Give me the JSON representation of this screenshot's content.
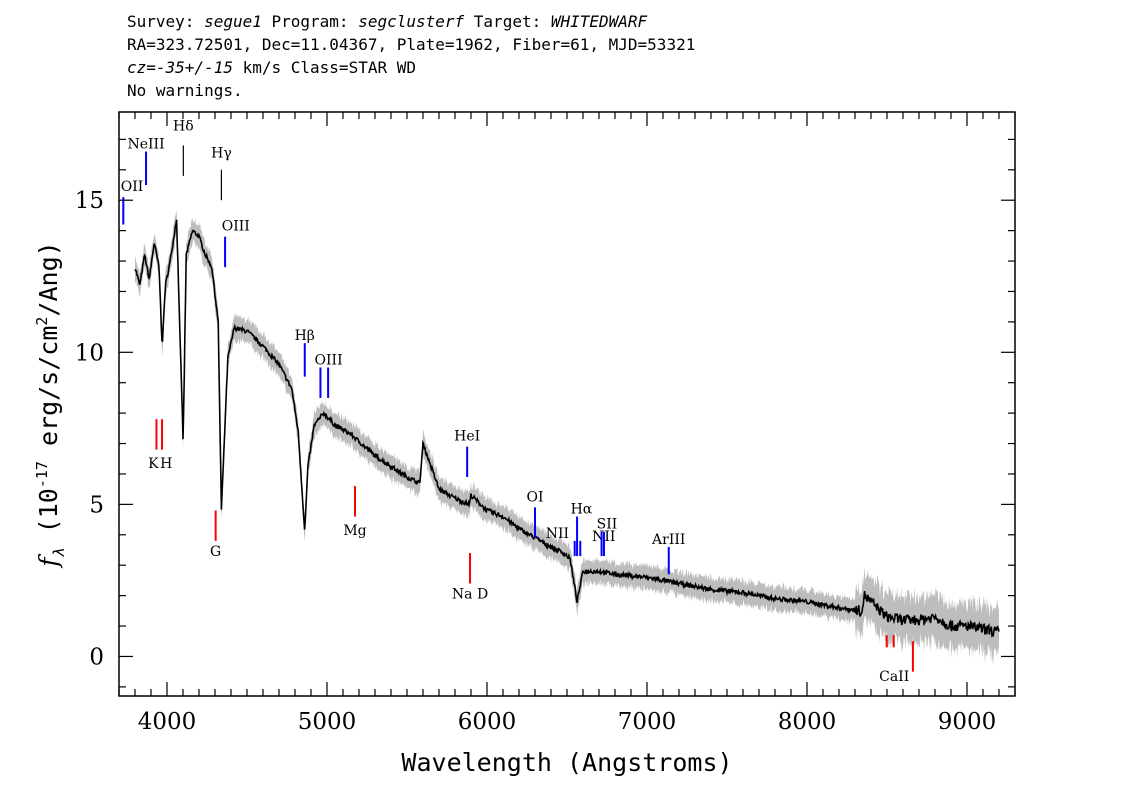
{
  "header": {
    "line1": {
      "survey_label": "Survey: ",
      "survey": "segue1",
      "program_label": " Program: ",
      "program": "segclusterf",
      "target_label": " Target: ",
      "target": "WHITEDWARF"
    },
    "line2": "RA=323.72501, Dec=11.04367, Plate=1962, Fiber=61, MJD=53321",
    "line3": {
      "cz": "cz=-35+/-15",
      "rest": " km/s Class=STAR WD"
    },
    "line4": "No warnings."
  },
  "chart_data": {
    "type": "line",
    "xlabel": "Wavelength (Angstroms)",
    "ylabel_parts": {
      "f": "f",
      "sub": "λ",
      "open": " (10",
      "exp": "-17",
      "mid": " erg/s/cm",
      "exp2": "2",
      "close": "/Ang)"
    },
    "xlim": [
      3700,
      9300
    ],
    "ylim": [
      -1.3,
      17.9
    ],
    "x_ticks": [
      4000,
      5000,
      6000,
      7000,
      8000,
      9000
    ],
    "y_ticks": [
      0,
      5,
      10,
      15
    ],
    "grid": false,
    "colors": {
      "flux": "#000000",
      "error_band": "#bdbdbd",
      "emission": "#0000ff",
      "absorption": "#ff0000",
      "marker": "#000000"
    },
    "series": [
      {
        "x": [
          3800,
          3830,
          3860,
          3889,
          3920,
          3950,
          3970,
          3990,
          4020,
          4060,
          4101,
          4120,
          4160,
          4200,
          4240,
          4280,
          4320,
          4340,
          4380,
          4420,
          4500,
          4600,
          4700,
          4780,
          4820,
          4861,
          4880,
          4920,
          4980,
          5050,
          5150,
          5300,
          5500,
          5580,
          5600,
          5700,
          5800,
          5890,
          5900,
          6000,
          6100,
          6200,
          6300,
          6400,
          6480,
          6520,
          6563,
          6600,
          6700,
          6800,
          7000,
          7200,
          7400,
          7600,
          7800,
          8000,
          8200,
          8340,
          8360,
          8500,
          8600,
          8700,
          8800,
          8900,
          9000,
          9100,
          9200
        ],
        "y": [
          12.8,
          12.2,
          13.2,
          12.4,
          13.6,
          12.8,
          10.2,
          12.2,
          13.0,
          14.4,
          7.0,
          13.2,
          14.0,
          13.8,
          13.2,
          12.8,
          11.0,
          4.8,
          9.8,
          10.8,
          10.7,
          10.2,
          9.6,
          8.8,
          7.4,
          4.1,
          6.2,
          7.6,
          8.0,
          7.6,
          7.3,
          6.6,
          5.9,
          5.7,
          7.0,
          5.5,
          5.2,
          5.0,
          5.3,
          4.8,
          4.6,
          4.2,
          3.9,
          3.6,
          3.4,
          3.2,
          1.8,
          2.8,
          2.8,
          2.7,
          2.6,
          2.4,
          2.2,
          2.1,
          1.9,
          1.8,
          1.6,
          1.5,
          2.0,
          1.3,
          1.2,
          1.2,
          1.3,
          1.0,
          1.0,
          0.9,
          0.8
        ]
      }
    ],
    "emission_lines": [
      {
        "label": "OII",
        "x": 3727,
        "y1": 14.2,
        "y2": 15.1,
        "label_y": 15.3,
        "label_x": 3730
      },
      {
        "label": "NeIII",
        "x": 3869,
        "y1": 15.5,
        "y2": 16.6,
        "label_y": 16.7,
        "label_x": 3869
      },
      {
        "label": "Hδ",
        "x": 4102,
        "y1": 15.8,
        "y2": 16.8,
        "label_y": 17.3,
        "label_x": 4102,
        "marker": true
      },
      {
        "label": "Hγ",
        "x": 4340,
        "y1": 15.0,
        "y2": 16.0,
        "label_y": 16.4,
        "label_x": 4340,
        "marker": true
      },
      {
        "label": "OIII",
        "x": 4363,
        "y1": 12.8,
        "y2": 13.8,
        "label_y": 14.0,
        "label_x": 4430
      },
      {
        "label": "Hβ",
        "x": 4861,
        "y1": 9.2,
        "y2": 10.3,
        "label_y": 10.4,
        "label_x": 4861
      },
      {
        "label": "OIII",
        "x": 4959,
        "y1": 8.5,
        "y2": 9.5,
        "label_y": 9.6,
        "label_x": 5010
      },
      {
        "label": "OIII",
        "x": 5007,
        "y1": 8.5,
        "y2": 9.5,
        "label_y": null,
        "label_x": 5007
      },
      {
        "label": "HeI",
        "x": 5876,
        "y1": 5.9,
        "y2": 6.9,
        "label_y": 7.1,
        "label_x": 5876
      },
      {
        "label": "OI",
        "x": 6300,
        "y1": 3.9,
        "y2": 4.9,
        "label_y": 5.1,
        "label_x": 6300
      },
      {
        "label": "NII",
        "x": 6548,
        "y1": 3.3,
        "y2": 3.8,
        "label_y": 3.9,
        "label_x": 6440
      },
      {
        "label": "Hα",
        "x": 6563,
        "y1": 3.3,
        "y2": 4.6,
        "label_y": 4.7,
        "label_x": 6590
      },
      {
        "label": "NII",
        "x": 6583,
        "y1": 3.3,
        "y2": 3.8,
        "label_y": 3.8,
        "label_x": 6730
      },
      {
        "label": "SII",
        "x": 6716,
        "y1": 3.3,
        "y2": 4.1,
        "label_y": 4.2,
        "label_x": 6750
      },
      {
        "label": "SII",
        "x": 6731,
        "y1": 3.3,
        "y2": 4.1,
        "label_y": null,
        "label_x": 6731
      },
      {
        "label": "ArIII",
        "x": 7136,
        "y1": 2.7,
        "y2": 3.6,
        "label_y": 3.7,
        "label_x": 7136
      }
    ],
    "absorption_lines": [
      {
        "label": "K",
        "x": 3934,
        "y1": 6.8,
        "y2": 7.8,
        "label_y": 6.2,
        "label_x": 3915
      },
      {
        "label": "H",
        "x": 3969,
        "y1": 6.8,
        "y2": 7.8,
        "label_y": 6.2,
        "label_x": 3995
      },
      {
        "label": "G",
        "x": 4304,
        "y1": 3.8,
        "y2": 4.8,
        "label_y": 3.3,
        "label_x": 4304
      },
      {
        "label": "Mg",
        "x": 5175,
        "y1": 4.6,
        "y2": 5.6,
        "label_y": 4.0,
        "label_x": 5175
      },
      {
        "label": "Na D",
        "x": 5894,
        "y1": 2.4,
        "y2": 3.4,
        "label_y": 1.9,
        "label_x": 5894
      },
      {
        "label": "CaII",
        "x": 8498,
        "y1": 0.3,
        "y2": 0.7,
        "label_y": -0.8,
        "label_x": 8545
      },
      {
        "label": "CaII",
        "x": 8542,
        "y1": 0.3,
        "y2": 0.7,
        "label_y": null,
        "label_x": 8542
      },
      {
        "label": "CaII",
        "x": 8662,
        "y1": -0.5,
        "y2": 0.5,
        "label_y": null,
        "label_x": 8662
      }
    ]
  }
}
